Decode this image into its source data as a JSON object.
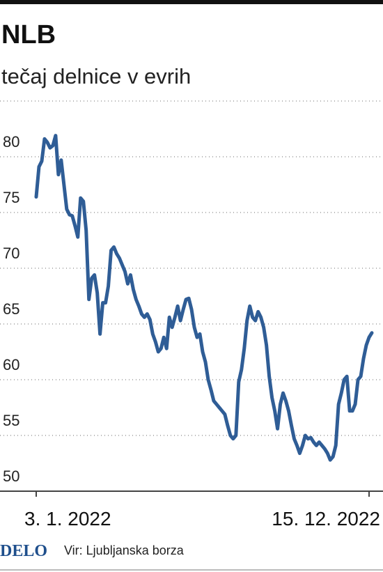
{
  "chart_data": {
    "type": "line",
    "title": "NLB",
    "subtitle": "tečaj delnice v evrih",
    "brand": "DELO",
    "source": "Vir: Ljubljanska borza",
    "categories": [
      "3. 1. 2022",
      null,
      null,
      null,
      null,
      null,
      null,
      null,
      null,
      null,
      null,
      null,
      null,
      null,
      null,
      null,
      null,
      null,
      null,
      null,
      null,
      null,
      null,
      null,
      null,
      null,
      null,
      null,
      null,
      null,
      null,
      null,
      null,
      null,
      null,
      null,
      null,
      null,
      null,
      null,
      null,
      null,
      null,
      null,
      null,
      null,
      null,
      null,
      null,
      null,
      null,
      null,
      null,
      null,
      null,
      null,
      null,
      null,
      null,
      null,
      null,
      null,
      null,
      null,
      null,
      null,
      null,
      null,
      null,
      null,
      null,
      null,
      null,
      null,
      null,
      null,
      null,
      null,
      null,
      null,
      null,
      null,
      null,
      null,
      null,
      null,
      null,
      null,
      null,
      null,
      null,
      null,
      null,
      null,
      null,
      null,
      null,
      null,
      null,
      null,
      null,
      null,
      null,
      null,
      null,
      null,
      null,
      null,
      null,
      null,
      null,
      null,
      null,
      null,
      null,
      null,
      null,
      null,
      null,
      null,
      "15. 12. 2022",
      null
    ],
    "values": [
      76.4,
      79.1,
      79.6,
      81.6,
      81.3,
      80.8,
      81,
      81.9,
      78.4,
      79.7,
      77.5,
      75.3,
      74.8,
      74.7,
      73.8,
      72.8,
      76.3,
      76,
      73.4,
      67.2,
      69.1,
      69.4,
      67.8,
      64.1,
      66.9,
      66.9,
      68.4,
      71.6,
      71.9,
      71.3,
      70.9,
      70.3,
      69.7,
      68.6,
      69.4,
      68.1,
      67.2,
      66.6,
      65.9,
      65.6,
      65.9,
      65.4,
      64.1,
      63.4,
      62.5,
      62.8,
      63.8,
      62.8,
      65.6,
      64.7,
      65.6,
      66.6,
      65.3,
      66.3,
      67.2,
      67.3,
      66.3,
      64.7,
      63.8,
      64.1,
      62.5,
      61.6,
      60,
      59.1,
      58.1,
      57.8,
      57.5,
      57.2,
      56.9,
      55.9,
      55,
      54.7,
      55,
      59.8,
      60.9,
      62.8,
      65.3,
      66.6,
      65.6,
      65.3,
      66.1,
      65.6,
      64.7,
      63.1,
      60.3,
      58.4,
      57.2,
      55.6,
      57.8,
      58.8,
      58.1,
      57.2,
      55.9,
      54.7,
      54.1,
      53.4,
      54.1,
      55,
      54.7,
      54.8,
      54.4,
      54.1,
      54.4,
      54.1,
      53.8,
      53.4,
      52.8,
      53.1,
      54.1,
      57.8,
      58.8,
      60,
      60.3,
      57.2,
      57.2,
      57.8,
      60,
      60.3,
      61.9,
      63.1,
      63.8,
      64.2
    ],
    "color": "#2f5d96",
    "ylim": [
      50,
      85
    ],
    "yticks": [
      50,
      55,
      60,
      65,
      70,
      75,
      80
    ],
    "grid": true
  }
}
